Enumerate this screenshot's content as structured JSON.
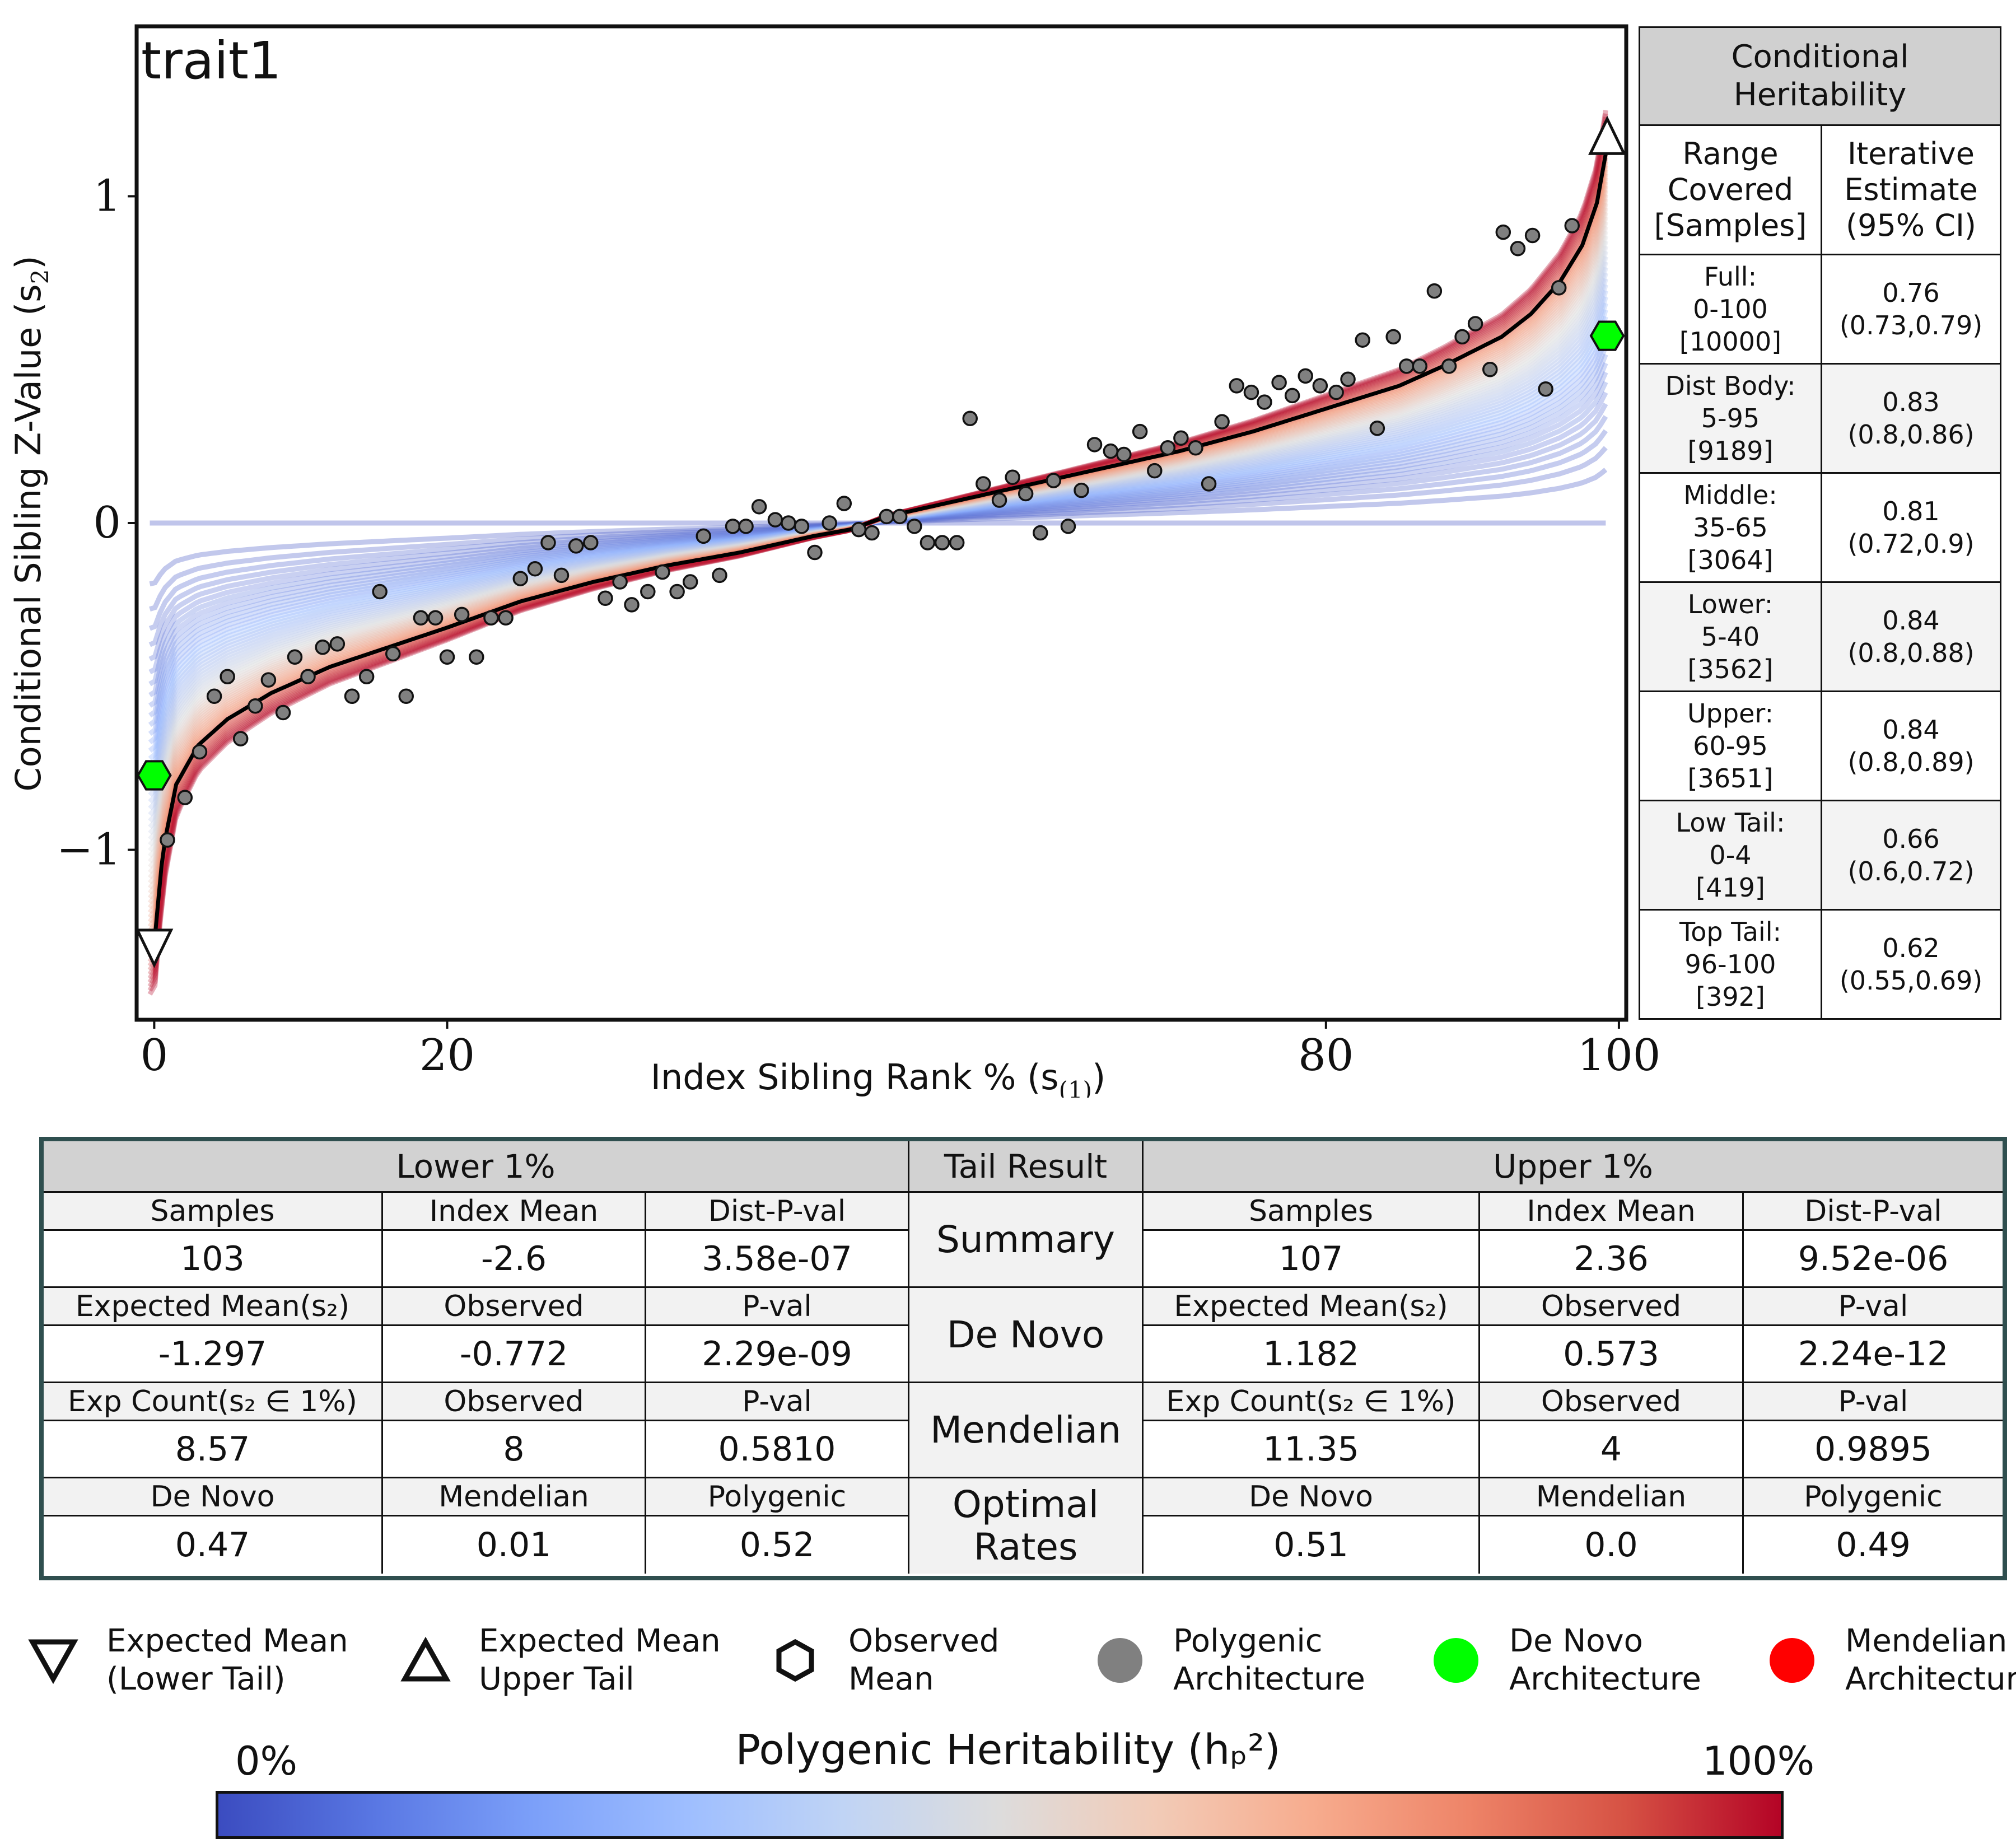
{
  "chart_data": {
    "type": "scatter",
    "panel_label": "trait1",
    "xlabel": "Index Sibling Rank % (s",
    "xlabel_sub": "(1)",
    "xlabel_tail": ")",
    "ylabel": "Conditional Sibling Z-Value (s",
    "ylabel_sub": "2",
    "ylabel_tail": ")",
    "xlim": [
      -1.2,
      100.5
    ],
    "ylim": [
      -1.52,
      1.52
    ],
    "xticks": [
      0,
      20,
      80,
      100
    ],
    "yticks": [
      1,
      0,
      -1
    ],
    "ytick_labels": [
      "1",
      "0",
      "−1"
    ],
    "fit_curve": {
      "x": [
        0,
        0.6,
        1.5,
        3,
        5,
        8,
        12,
        16,
        20,
        25,
        30,
        35,
        40,
        45,
        47.5,
        50,
        55,
        60,
        65,
        70,
        75,
        80,
        85,
        88,
        92,
        94,
        96,
        97.5,
        98.5,
        99.3
      ],
      "y": [
        -1.29,
        -1.0,
        -0.8,
        -0.68,
        -0.6,
        -0.52,
        -0.44,
        -0.38,
        -0.32,
        -0.24,
        -0.18,
        -0.13,
        -0.09,
        -0.04,
        -0.02,
        0.02,
        0.07,
        0.12,
        0.17,
        0.22,
        0.28,
        0.35,
        0.42,
        0.48,
        0.57,
        0.64,
        0.74,
        0.85,
        0.98,
        1.18
      ]
    },
    "sibling_points": {
      "x": [
        0.9,
        2.1,
        3.1,
        4.1,
        5.0,
        5.9,
        6.9,
        7.8,
        8.8,
        9.6,
        10.5,
        11.5,
        12.5,
        13.5,
        14.5,
        15.4,
        16.3,
        17.2,
        18.2,
        19.2,
        20.0,
        21.0,
        22.0,
        23.0,
        24.0,
        25.0,
        26.0,
        26.9,
        27.8,
        28.8,
        29.8,
        30.8,
        31.8,
        32.6,
        33.7,
        34.7,
        35.7,
        36.6,
        37.5,
        38.6,
        39.5,
        40.4,
        41.3,
        42.4,
        43.3,
        44.2,
        45.1,
        46.1,
        47.1,
        48.1,
        49.0,
        50.0,
        50.9,
        51.9,
        52.8,
        53.8,
        54.8,
        55.7,
        56.6,
        57.7,
        58.6,
        59.5,
        60.5,
        61.4,
        62.4,
        63.3,
        64.2,
        65.3,
        66.2,
        67.3,
        68.3,
        69.2,
        70.1,
        71.1,
        72.0,
        72.9,
        73.9,
        74.9,
        75.8,
        76.8,
        77.7,
        78.6,
        79.6,
        80.7,
        81.5,
        82.5,
        83.5,
        84.6,
        85.5,
        86.4,
        87.4,
        88.4,
        89.3,
        90.2,
        91.2,
        92.1,
        93.1,
        94.1,
        95.0,
        95.9,
        96.8
      ],
      "y": [
        -0.97,
        -0.84,
        -0.7,
        -0.53,
        -0.47,
        -0.66,
        -0.56,
        -0.48,
        -0.58,
        -0.41,
        -0.47,
        -0.38,
        -0.37,
        -0.53,
        -0.47,
        -0.21,
        -0.4,
        -0.53,
        -0.29,
        -0.29,
        -0.41,
        -0.28,
        -0.41,
        -0.29,
        -0.29,
        -0.17,
        -0.14,
        -0.06,
        -0.16,
        -0.07,
        -0.06,
        -0.23,
        -0.18,
        -0.25,
        -0.21,
        -0.15,
        -0.21,
        -0.18,
        -0.04,
        -0.16,
        -0.01,
        -0.01,
        0.05,
        0.01,
        0.0,
        -0.01,
        -0.09,
        0.0,
        0.06,
        -0.02,
        -0.03,
        0.02,
        0.02,
        -0.01,
        -0.06,
        -0.06,
        -0.06,
        0.32,
        0.12,
        0.07,
        0.14,
        0.09,
        -0.03,
        0.13,
        -0.01,
        0.1,
        0.24,
        0.22,
        0.21,
        0.28,
        0.16,
        0.23,
        0.26,
        0.23,
        0.12,
        0.31,
        0.42,
        0.4,
        0.37,
        0.43,
        0.39,
        0.45,
        0.42,
        0.4,
        0.44,
        0.56,
        0.29,
        0.57,
        0.48,
        0.48,
        0.71,
        0.48,
        0.57,
        0.61,
        0.47,
        0.89,
        0.84,
        0.88,
        0.41,
        0.72,
        0.91
      ]
    },
    "expected_mean_lower": {
      "x": 0,
      "y": -1.297
    },
    "expected_mean_upper": {
      "x": 99.2,
      "y": 1.182
    },
    "observed_mean_lower": {
      "x": 0,
      "y": -0.772
    },
    "observed_mean_upper": {
      "x": 99.2,
      "y": 0.573
    },
    "colors": {
      "points": "#808080",
      "de_novo": "#00ff00",
      "mendelian": "#ff0000",
      "fit": "#000000",
      "cmap_low": "#3b4cc0",
      "cmap_mid": "#dddcdc",
      "cmap_high": "#b40426"
    }
  },
  "heritability_table": {
    "title": "Conditional\nHeritability",
    "col1": "Range\nCovered\n[Samples]",
    "col2": "Iterative\nEstimate\n(95% CI)",
    "rows": [
      {
        "range": "Full:\n0-100\n[10000]",
        "est": "0.76\n(0.73,0.79)"
      },
      {
        "range": "Dist Body:\n5-95\n[9189]",
        "est": "0.83\n(0.8,0.86)"
      },
      {
        "range": "Middle:\n35-65\n[3064]",
        "est": "0.81\n(0.72,0.9)"
      },
      {
        "range": "Lower:\n5-40\n[3562]",
        "est": "0.84\n(0.8,0.88)"
      },
      {
        "range": "Upper:\n60-95\n[3651]",
        "est": "0.84\n(0.8,0.89)"
      },
      {
        "range": "Low Tail:\n0-4\n[419]",
        "est": "0.66\n(0.6,0.72)"
      },
      {
        "range": "Top Tail:\n96-100\n[392]",
        "est": "0.62\n(0.55,0.69)"
      }
    ]
  },
  "tail_table": {
    "header_lower": "Lower 1%",
    "header_mid": "Tail Result",
    "header_upper": "Upper 1%",
    "sections": [
      {
        "name": "Summary",
        "labels": [
          "Samples",
          "Index Mean",
          "Dist-P-val"
        ],
        "lower": [
          "103",
          "-2.6",
          "3.58e-07"
        ],
        "upper": [
          "107",
          "2.36",
          "9.52e-06"
        ]
      },
      {
        "name": "De Novo",
        "labels": [
          "Expected Mean(s₂)",
          "Observed",
          "P-val"
        ],
        "lower": [
          "-1.297",
          "-0.772",
          "2.29e-09"
        ],
        "upper": [
          "1.182",
          "0.573",
          "2.24e-12"
        ]
      },
      {
        "name": "Mendelian",
        "labels": [
          "Exp Count(s₂ ∈ 1%)",
          "Observed",
          "P-val"
        ],
        "lower": [
          "8.57",
          "8",
          "0.5810"
        ],
        "upper": [
          "11.35",
          "4",
          "0.9895"
        ]
      },
      {
        "name": "Optimal\nRates",
        "labels": [
          "De Novo",
          "Mendelian",
          "Polygenic"
        ],
        "lower": [
          "0.47",
          "0.01",
          "0.52"
        ],
        "upper": [
          "0.51",
          "0.0",
          "0.49"
        ]
      }
    ]
  },
  "legend": [
    {
      "icon": "down-triangle-icon",
      "label": "Expected Mean\n(Lower Tail)"
    },
    {
      "icon": "up-triangle-icon",
      "label": "Expected Mean\nUpper Tail"
    },
    {
      "icon": "hexagon-icon",
      "label": "Observed\nMean"
    },
    {
      "icon": "gray-dot-icon",
      "label": "Polygenic\nArchitecture"
    },
    {
      "icon": "green-dot-icon",
      "label": "De Novo\nArchitecture"
    },
    {
      "icon": "red-dot-icon",
      "label": "Mendelian\nArchitecture"
    }
  ],
  "colorbar": {
    "title": "Polygenic Heritability (hₚ²)",
    "min_label": "0%",
    "max_label": "100%"
  }
}
